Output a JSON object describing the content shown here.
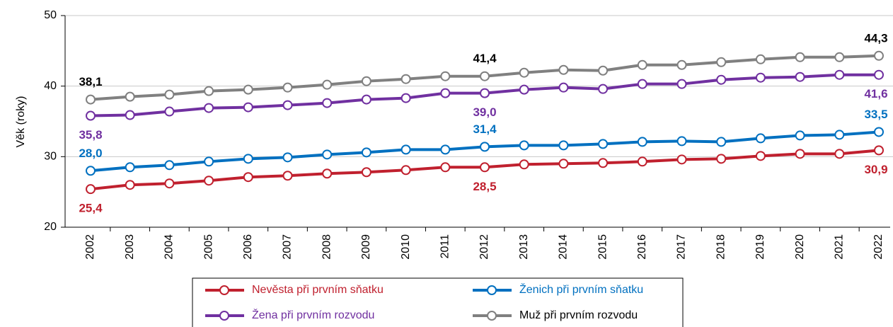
{
  "chart_data": {
    "type": "line",
    "y_label": "Věk (roky)",
    "categories": [
      "2002",
      "2003",
      "2004",
      "2005",
      "2006",
      "2007",
      "2008",
      "2009",
      "2010",
      "2011",
      "2012",
      "2013",
      "2014",
      "2015",
      "2016",
      "2017",
      "2018",
      "2019",
      "2020",
      "2021",
      "2022"
    ],
    "ylim": [
      20,
      50
    ],
    "yticks": [
      20,
      30,
      40,
      50
    ],
    "grid": true,
    "series": [
      {
        "name": "Nevěsta při prvním sňatku",
        "color": "#c0202e",
        "label_color": "#c0202e",
        "values": [
          25.4,
          26.0,
          26.2,
          26.6,
          27.1,
          27.3,
          27.6,
          27.8,
          28.1,
          28.5,
          28.5,
          28.9,
          29.0,
          29.1,
          29.3,
          29.6,
          29.7,
          30.1,
          30.4,
          30.4,
          30.9
        ],
        "value_labels": [
          "25,4",
          null,
          null,
          null,
          null,
          null,
          null,
          null,
          null,
          null,
          "28,5",
          null,
          null,
          null,
          null,
          null,
          null,
          null,
          null,
          null,
          "30,9"
        ]
      },
      {
        "name": "Ženich při prvním sňatku",
        "color": "#0070c0",
        "label_color": "#0070c0",
        "values": [
          28.0,
          28.5,
          28.8,
          29.3,
          29.7,
          29.9,
          30.3,
          30.6,
          31.0,
          31.0,
          31.4,
          31.6,
          31.6,
          31.8,
          32.1,
          32.2,
          32.1,
          32.6,
          33.0,
          33.1,
          33.5
        ],
        "value_labels": [
          "28,0",
          null,
          null,
          null,
          null,
          null,
          null,
          null,
          null,
          null,
          "31,4",
          null,
          null,
          null,
          null,
          null,
          null,
          null,
          null,
          null,
          "33,5"
        ]
      },
      {
        "name": "Žena při prvním rozvodu",
        "color": "#7030a0",
        "label_color": "#7030a0",
        "values": [
          35.8,
          35.9,
          36.4,
          36.9,
          37.0,
          37.3,
          37.6,
          38.1,
          38.3,
          39.0,
          39.0,
          39.5,
          39.8,
          39.6,
          40.3,
          40.3,
          40.9,
          41.2,
          41.3,
          41.6,
          41.6
        ],
        "value_labels": [
          "35,8",
          null,
          null,
          null,
          null,
          null,
          null,
          null,
          null,
          null,
          "39,0",
          null,
          null,
          null,
          null,
          null,
          null,
          null,
          null,
          null,
          "41,6"
        ]
      },
      {
        "name": "Muž při prvním rozvodu",
        "color": "#808080",
        "label_color": "#000000",
        "values": [
          38.1,
          38.5,
          38.8,
          39.3,
          39.5,
          39.8,
          40.2,
          40.7,
          41.0,
          41.4,
          41.4,
          41.9,
          42.3,
          42.2,
          43.0,
          43.0,
          43.4,
          43.8,
          44.1,
          44.1,
          44.3
        ],
        "value_labels": [
          "38,1",
          null,
          null,
          null,
          null,
          null,
          null,
          null,
          null,
          null,
          "41,4",
          null,
          null,
          null,
          null,
          null,
          null,
          null,
          null,
          null,
          "44,3"
        ]
      }
    ]
  }
}
